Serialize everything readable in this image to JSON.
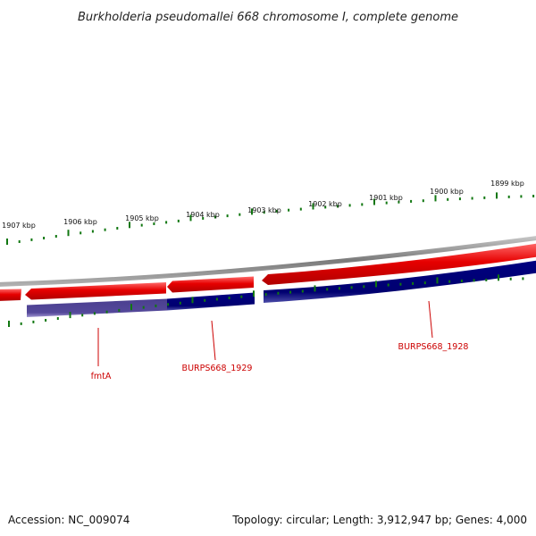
{
  "title": "Burkholderia pseudomallei 668 chromosome I, complete genome",
  "footer": {
    "accession": "Accession: NC_009074",
    "summary": "Topology: circular; Length: 3,912,947 bp; Genes: 4,000"
  },
  "colors": {
    "backbone": "#8c8c8c",
    "forward_track": "#e60000",
    "reverse_track": "#000080",
    "ticks": "#117711",
    "gene_labels": "#cc0000",
    "title_text": "#222222"
  },
  "scale": {
    "unit": "kbp",
    "labels": [
      "1907 kbp",
      "1906 kbp",
      "1905 kbp",
      "1904 kbp",
      "1903 kbp",
      "1902 kbp",
      "1901 kbp",
      "1900 kbp",
      "1899 kbp"
    ]
  },
  "genes": [
    {
      "label": "fmtA"
    },
    {
      "label": "BURPS668_1929"
    },
    {
      "label": "BURPS668_1928"
    }
  ]
}
